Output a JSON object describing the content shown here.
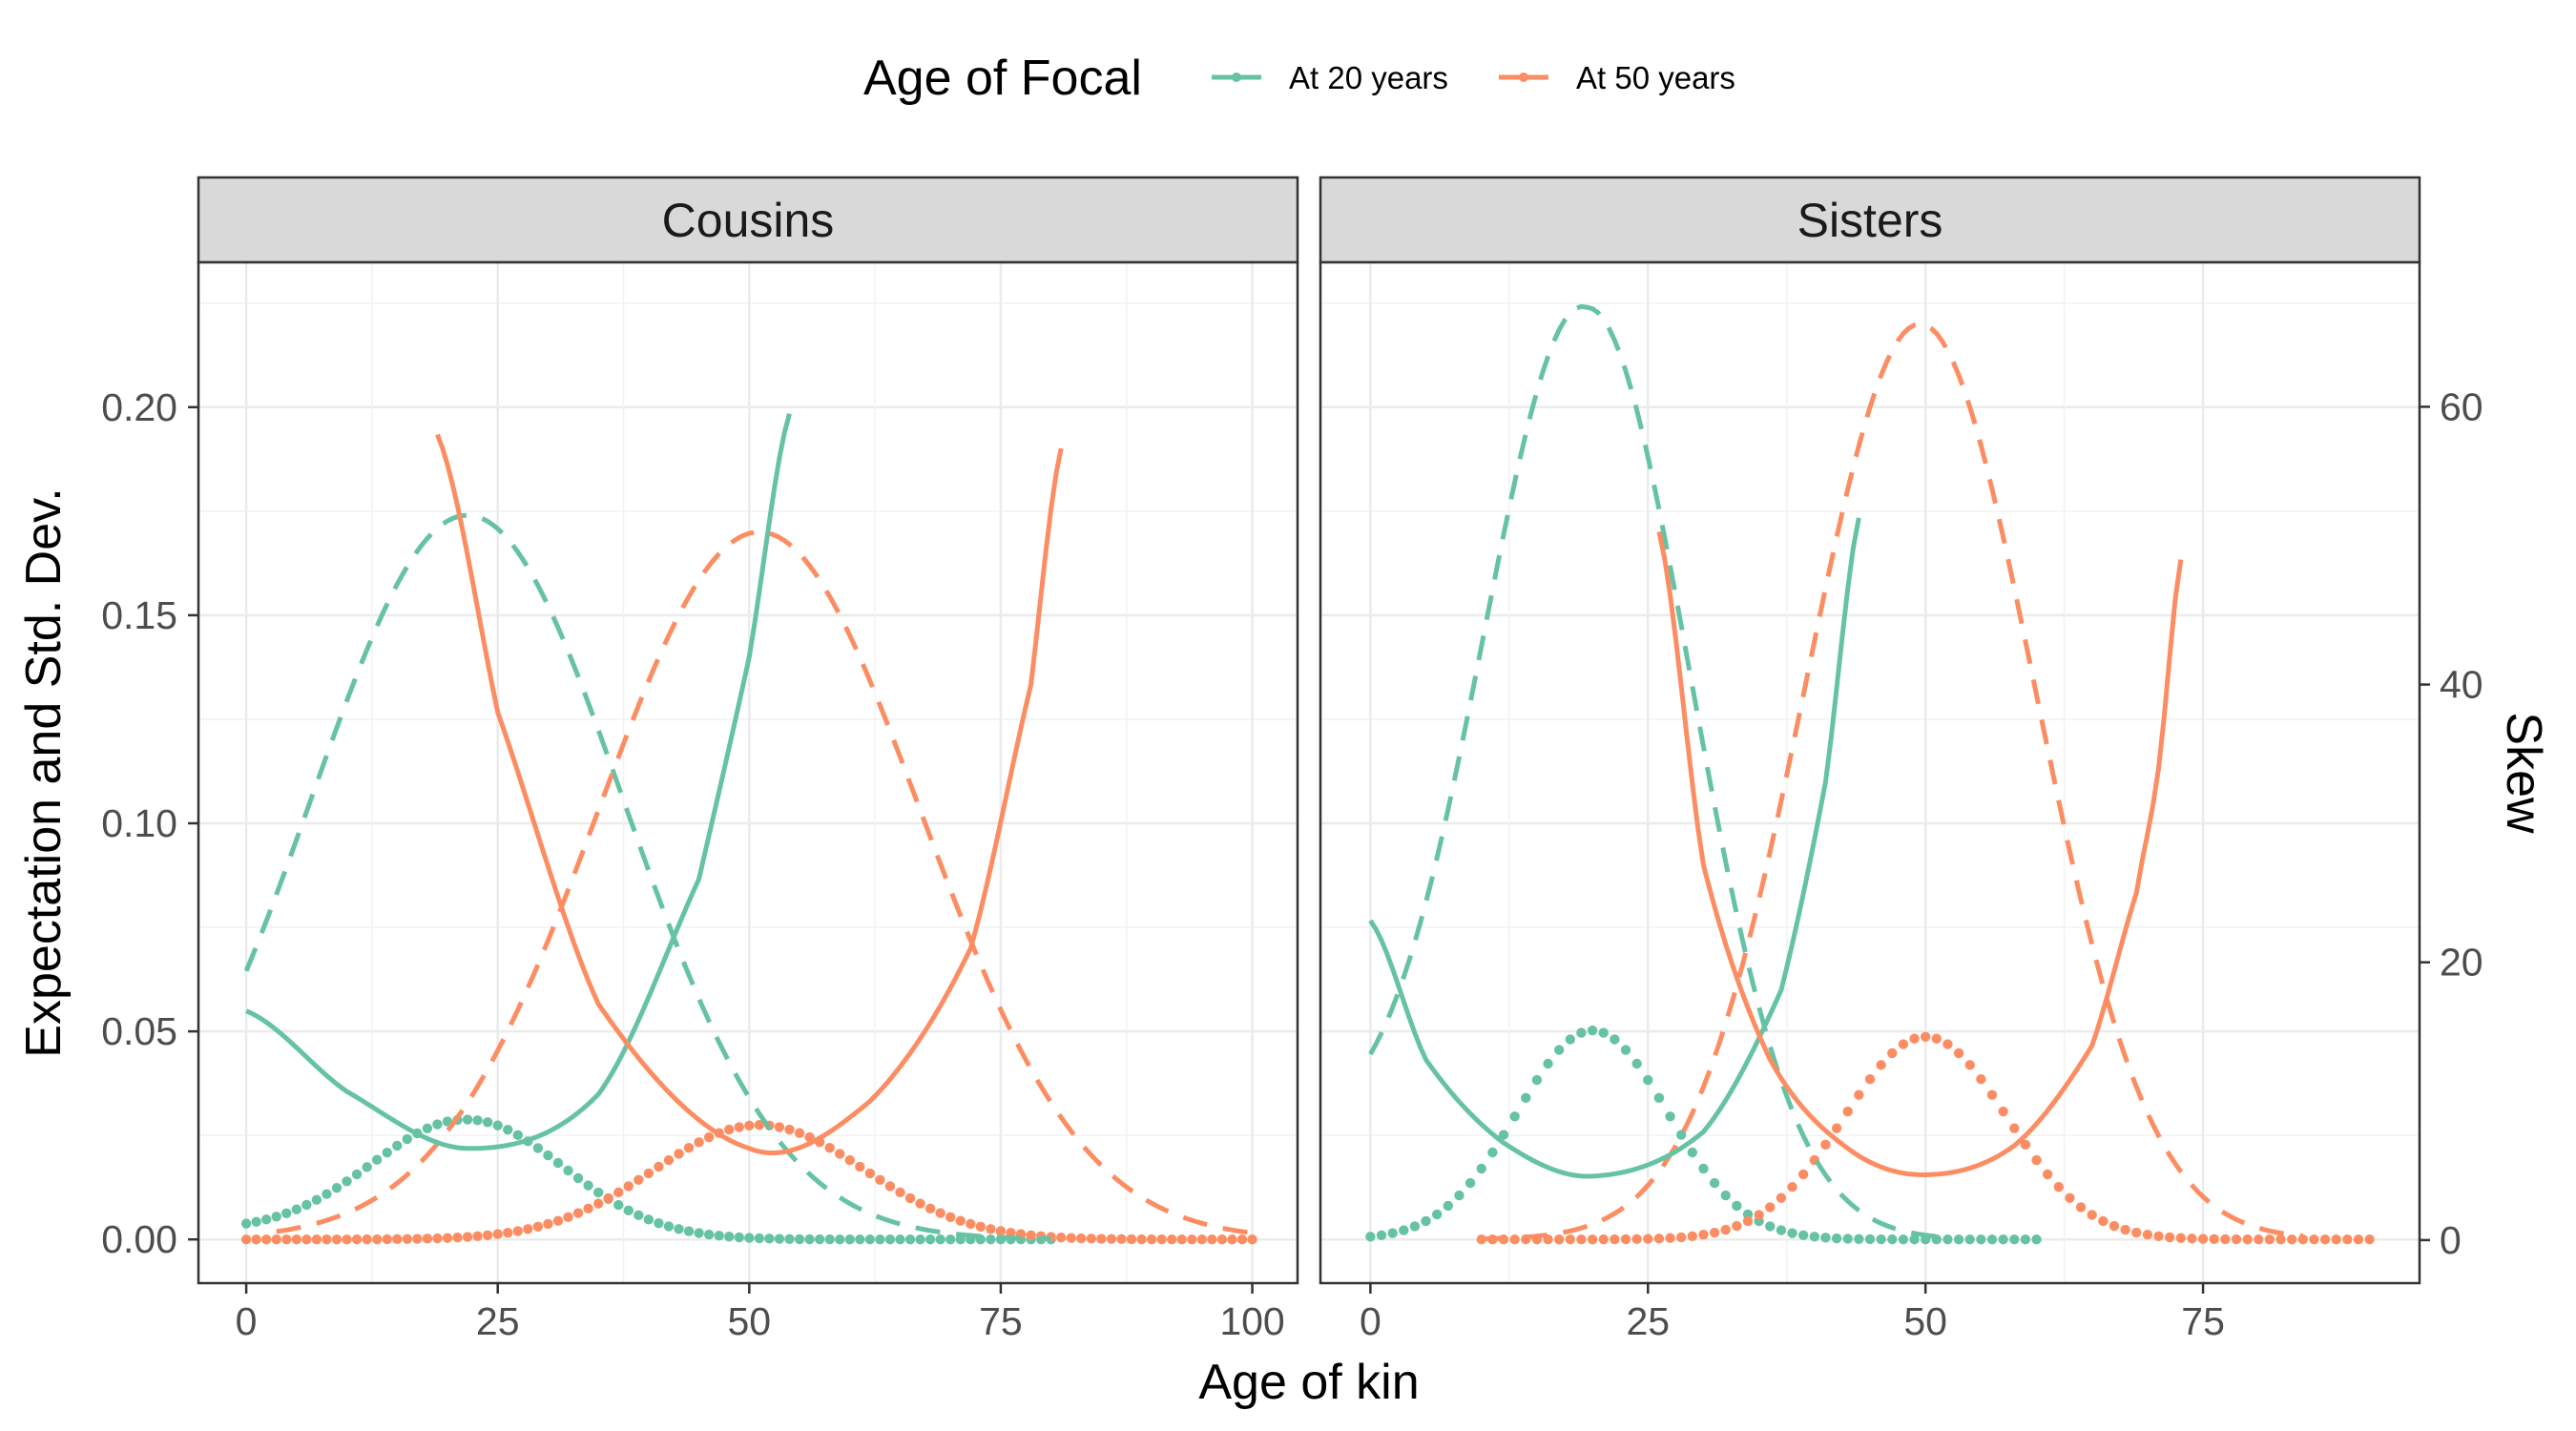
{
  "chart_data": {
    "type": "line",
    "legend": {
      "title": "Age of Focal",
      "position": "top",
      "entries": [
        {
          "label": "At 20 years",
          "color": "#66C2A5"
        },
        {
          "label": "At 50 years",
          "color": "#FC8D62"
        }
      ]
    },
    "xlabel": "Age of kin",
    "ylabel": "Expectation and Std. Dev.",
    "ylabel_right": "Skew",
    "ylim": [
      -0.0105,
      0.2348
    ],
    "ylim_right": [
      -3.1,
      70.4
    ],
    "yticks": [
      {
        "value": 0.0,
        "label": "0.00"
      },
      {
        "value": 0.05,
        "label": "0.05"
      },
      {
        "value": 0.1,
        "label": "0.10"
      },
      {
        "value": 0.15,
        "label": "0.15"
      },
      {
        "value": 0.2,
        "label": "0.20"
      }
    ],
    "yticks_right": [
      {
        "value": 0,
        "label": "0"
      },
      {
        "value": 20,
        "label": "20"
      },
      {
        "value": 40,
        "label": "40"
      },
      {
        "value": 60,
        "label": "60"
      }
    ],
    "line_styles": {
      "dotted": "Expectation",
      "dashed": "Std. Dev.",
      "solid": "Skew"
    },
    "grid": true,
    "panels": [
      {
        "strip": "Cousins",
        "xlim": [
          -4.75,
          104.5
        ],
        "xticks": [
          0,
          25,
          50,
          75,
          100
        ],
        "xticklabels": [
          "0",
          "25",
          "50",
          "75",
          "100"
        ],
        "series": [
          {
            "focal": "At 20 years",
            "measure": "expectation",
            "x_range": [
              0,
              80
            ],
            "peak_x": 22,
            "peak_y": 0.0288,
            "width": 9.5,
            "y_at_0": 0.0038
          },
          {
            "focal": "At 50 years",
            "measure": "expectation",
            "x_range": [
              0,
              100
            ],
            "peak_x": 51,
            "peak_y": 0.0275,
            "width": 10.5
          },
          {
            "focal": "At 20 years",
            "measure": "std_dev",
            "x_range": [
              0,
              80
            ],
            "peak_x": 22,
            "peak_y": 0.174,
            "width": 15.5,
            "y_at_0": 0.0645
          },
          {
            "focal": "At 50 years",
            "measure": "std_dev",
            "x_range": [
              3,
              100
            ],
            "peak_x": 51,
            "peak_y": 0.17,
            "width": 16
          },
          {
            "focal": "At 20 years",
            "measure": "skew",
            "x_range": [
              0,
              54
            ],
            "points": [
              [
                0,
                16.5
              ],
              [
                10,
                10.7
              ],
              [
                22,
                6.6
              ],
              [
                35,
                10.5
              ],
              [
                45,
                26
              ],
              [
                50,
                42
              ],
              [
                54,
                59.5
              ]
            ]
          },
          {
            "focal": "At 50 years",
            "measure": "skew",
            "x_range": [
              19,
              81
            ],
            "points": [
              [
                19,
                58
              ],
              [
                25,
                38
              ],
              [
                35,
                17
              ],
              [
                50,
                6.6
              ],
              [
                62,
                10
              ],
              [
                72,
                21
              ],
              [
                78,
                40
              ],
              [
                81,
                57
              ]
            ]
          }
        ]
      },
      {
        "strip": "Sisters",
        "xlim": [
          -4.5,
          94.5
        ],
        "xticks": [
          0,
          25,
          50,
          75
        ],
        "xticklabels": [
          "0",
          "25",
          "50",
          "75"
        ],
        "series": [
          {
            "focal": "At 20 years",
            "measure": "expectation",
            "x_range": [
              0,
              60
            ],
            "peak_x": 20,
            "peak_y": 0.0502,
            "width": 6.8
          },
          {
            "focal": "At 50 years",
            "measure": "expectation",
            "x_range": [
              10,
              90
            ],
            "peak_x": 50,
            "peak_y": 0.0487,
            "width": 7.3
          },
          {
            "focal": "At 20 years",
            "measure": "std_dev",
            "x_range": [
              0,
              52
            ],
            "peak_x": 19.5,
            "peak_y": 0.224,
            "width": 9.3,
            "y_at_0": 0.0445
          },
          {
            "focal": "At 50 years",
            "measure": "std_dev",
            "x_range": [
              10,
              84
            ],
            "peak_x": 49.5,
            "peak_y": 0.22,
            "width": 10.3
          },
          {
            "focal": "At 20 years",
            "measure": "skew",
            "x_range": [
              0,
              44
            ],
            "points": [
              [
                0,
                23
              ],
              [
                5,
                13
              ],
              [
                12,
                7
              ],
              [
                20,
                4.6
              ],
              [
                30,
                7.8
              ],
              [
                37,
                18
              ],
              [
                41,
                33
              ],
              [
                44,
                52
              ]
            ]
          },
          {
            "focal": "At 50 years",
            "measure": "skew",
            "x_range": [
              26,
              73
            ],
            "points": [
              [
                26,
                51
              ],
              [
                30,
                27
              ],
              [
                36,
                13
              ],
              [
                43,
                6.6
              ],
              [
                50,
                4.7
              ],
              [
                58,
                6.8
              ],
              [
                65,
                14
              ],
              [
                69,
                25
              ],
              [
                71,
                34
              ],
              [
                73,
                49
              ]
            ]
          }
        ]
      }
    ]
  }
}
